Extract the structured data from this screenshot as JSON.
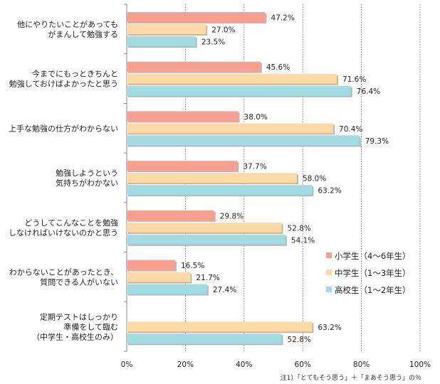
{
  "chart_data": {
    "type": "bar",
    "orientation": "horizontal",
    "categories": [
      [
        "他にやりたいことがあっても",
        "がまんして勉強する"
      ],
      [
        "今までにもっときちんと",
        "勉強しておけばよかったと思う"
      ],
      [
        "上手な勉強の仕方がわからない"
      ],
      [
        "勉強しようという",
        "気持ちがわかない"
      ],
      [
        "どうしてこんなことを勉強",
        "しなければいけないのかと思う"
      ],
      [
        "わからないことがあったとき、",
        "質問できる人がいない"
      ],
      [
        "定期テストはしっかり",
        "準備をして臨む",
        "（中学生・高校生のみ）"
      ]
    ],
    "series": [
      {
        "name": "小学生（4〜6年生）",
        "color": "#f9a091",
        "values": [
          47.2,
          45.6,
          38.0,
          37.7,
          29.8,
          16.5,
          null
        ]
      },
      {
        "name": "中学生（1〜3年生）",
        "color": "#fdd9a3",
        "values": [
          27.0,
          71.6,
          70.4,
          58.0,
          52.8,
          21.7,
          63.2
        ]
      },
      {
        "name": "高校生（1〜2年生）",
        "color": "#a3dbe3",
        "values": [
          23.5,
          76.4,
          79.3,
          63.2,
          54.1,
          27.4,
          52.8
        ]
      }
    ],
    "xlim": [
      0,
      100
    ],
    "ticks": [
      0,
      20,
      40,
      60,
      80,
      100
    ],
    "tick_suffix": "%",
    "value_suffix": "%",
    "grid": true,
    "legend_position": "right-bottom",
    "note": "注1）「とてもそう思う」＋「まあそう思う」の％"
  }
}
